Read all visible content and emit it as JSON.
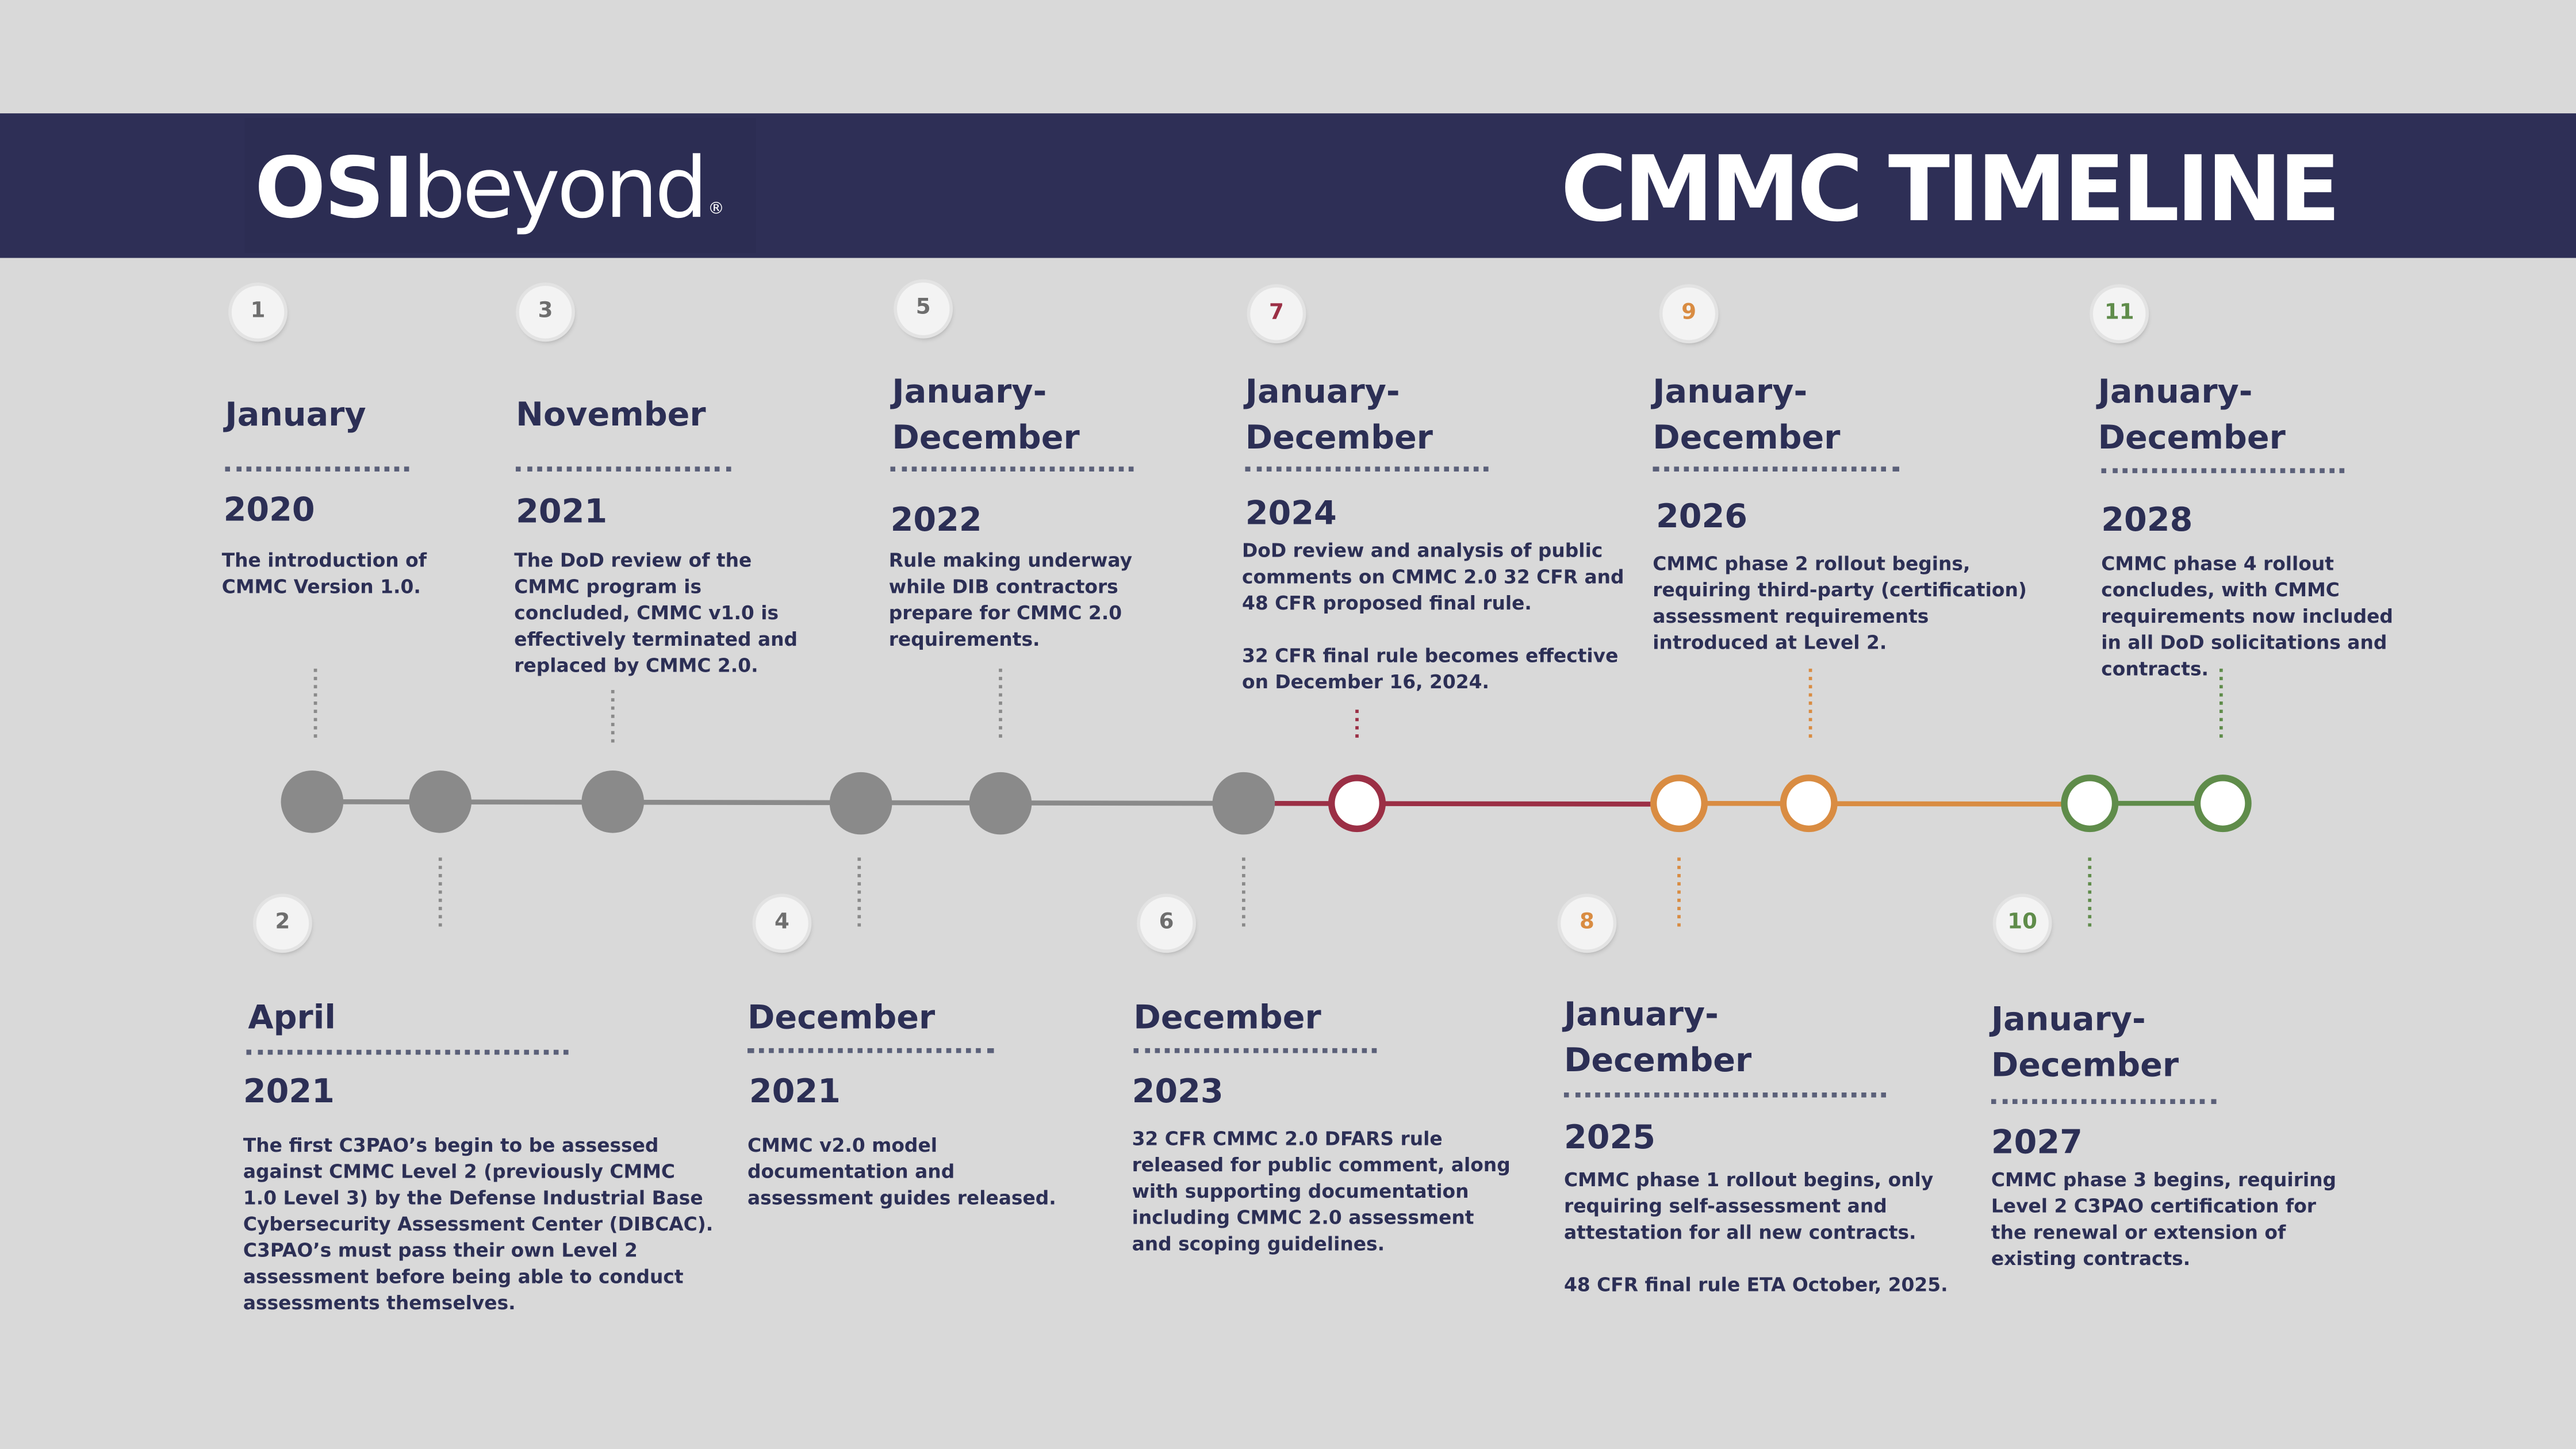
{
  "header": {
    "logo_bold": "OSI",
    "logo_regular": "beyond",
    "logo_mark": "®",
    "title": "CMMC TIMELINE"
  },
  "colors": {
    "banner": "#2e2f56",
    "text": "#2c2f55",
    "past_gray": "#8a8a8a",
    "maroon": "#9b2f45",
    "orange": "#d98c42",
    "green": "#5f8c4a"
  },
  "events": [
    {
      "number": "1",
      "month": "January",
      "year": "2020",
      "description": "The introduction of\nCMMC Version 1.0."
    },
    {
      "number": "2",
      "month": "April",
      "year": "2021",
      "description": "The first C3PAO’s begin to be assessed\nagainst CMMC Level 2 (previously CMMC\n1.0 Level 3) by the Defense Industrial Base\nCybersecurity Assessment Center (DIBCAC).\nC3PAO’s must pass their own Level 2\nassessment before being able to conduct\nassessments themselves."
    },
    {
      "number": "3",
      "month": "November",
      "year": "2021",
      "description": "The DoD review of the\nCMMC program is\nconcluded, CMMC v1.0 is\neffectively terminated and\nreplaced by CMMC 2.0."
    },
    {
      "number": "4",
      "month": "December",
      "year": "2021",
      "description": "CMMC v2.0 model\ndocumentation and\nassessment guides released."
    },
    {
      "number": "5",
      "month": "January-\nDecember",
      "year": "2022",
      "description": "Rule making underway\nwhile DIB contractors\nprepare for CMMC 2.0\nrequirements."
    },
    {
      "number": "6",
      "month": "December",
      "year": "2023",
      "description": "32 CFR CMMC 2.0 DFARS rule\nreleased for public comment, along\nwith supporting documentation\nincluding CMMC 2.0 assessment\nand scoping guidelines."
    },
    {
      "number": "7",
      "month": "January-\nDecember",
      "year": "2024",
      "description": "DoD review and analysis of public\ncomments on CMMC 2.0 32 CFR and\n48 CFR proposed final rule.\n\n32 CFR final rule becomes effective\non December 16, 2024."
    },
    {
      "number": "8",
      "month": "January-\nDecember",
      "year": "2025",
      "description": "CMMC phase 1 rollout begins, only\nrequiring self-assessment and\nattestation for all new contracts.\n\n48 CFR final rule ETA October, 2025."
    },
    {
      "number": "9",
      "month": "January-\nDecember",
      "year": "2026",
      "description": "CMMC phase 2 rollout begins,\nrequiring third-party (certification)\nassessment requirements\nintroduced at Level 2."
    },
    {
      "number": "10",
      "month": "January-\nDecember",
      "year": "2027",
      "description": "CMMC phase 3 begins, requiring\nLevel 2 C3PAO certification for\nthe renewal or extension of\nexisting contracts."
    },
    {
      "number": "11",
      "month": "January-\nDecember",
      "year": "2028",
      "description": "CMMC phase 4 rollout\nconcludes, with CMMC\nrequirements now included\nin all DoD solicitations and\ncontracts."
    }
  ]
}
